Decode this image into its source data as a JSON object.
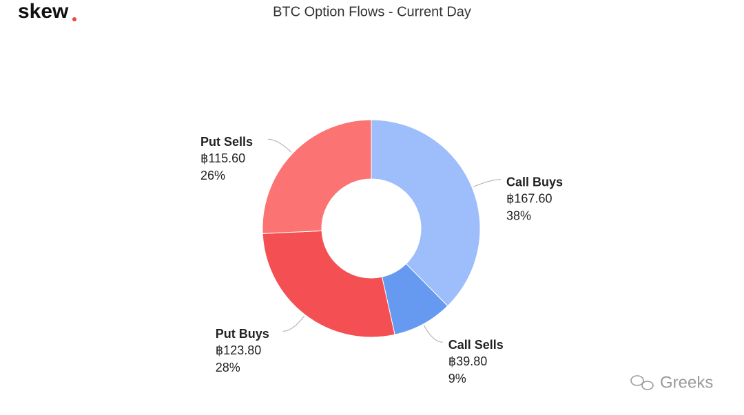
{
  "logo": "skew",
  "watermark": "Greeks",
  "chart_data": {
    "type": "pie",
    "title": "BTC Option Flows - Current Day",
    "categories": [
      "Call Buys",
      "Call Sells",
      "Put Buys",
      "Put Sells"
    ],
    "values": [
      167.6,
      39.8,
      123.8,
      115.6
    ],
    "value_labels": [
      "฿167.60",
      "฿39.80",
      "฿123.80",
      "฿115.60"
    ],
    "percents": [
      38,
      9,
      28,
      26
    ],
    "percent_labels": [
      "38%",
      "9%",
      "28%",
      "26%"
    ],
    "colors": [
      "#9dbdfb",
      "#6699f0",
      "#f44f52",
      "#fb7373"
    ]
  }
}
